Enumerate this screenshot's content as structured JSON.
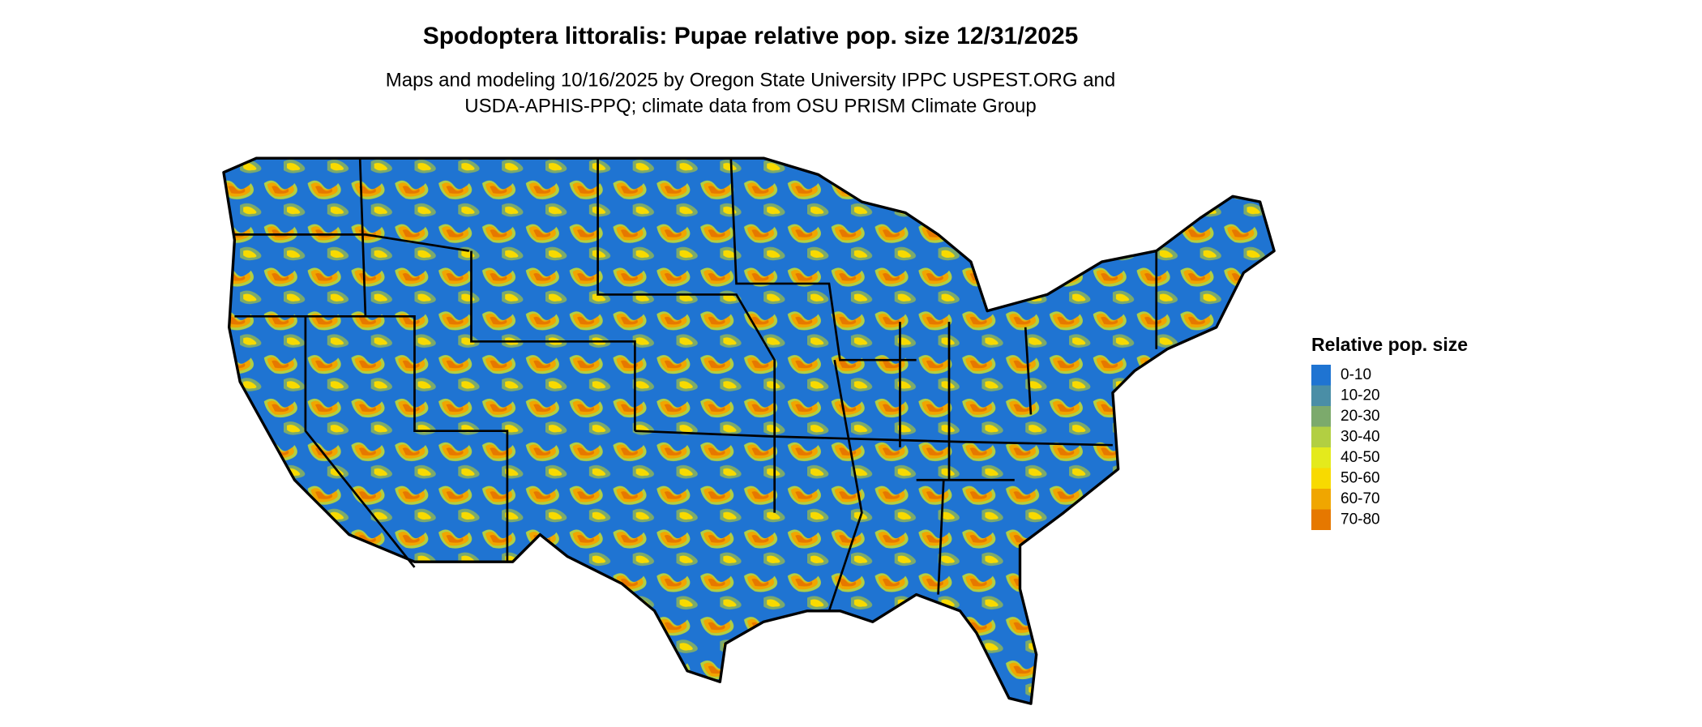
{
  "header": {
    "title": "Spodoptera littoralis: Pupae relative pop. size 12/31/2025",
    "subtitle_lines": [
      "Maps and modeling 10/16/2025 by Oregon State University IPPC USPEST.ORG and",
      "USDA-APHIS-PPQ; climate data from OSU PRISM Climate Group"
    ]
  },
  "legend": {
    "title": "Relative pop. size",
    "items": [
      {
        "label": "0-10",
        "color": "#1f74d2"
      },
      {
        "label": "10-20",
        "color": "#4a8ea6"
      },
      {
        "label": "20-30",
        "color": "#7caa6c"
      },
      {
        "label": "30-40",
        "color": "#b2cf42"
      },
      {
        "label": "40-50",
        "color": "#e4ea1c"
      },
      {
        "label": "50-60",
        "color": "#f8da00"
      },
      {
        "label": "60-70",
        "color": "#f0a600"
      },
      {
        "label": "70-80",
        "color": "#e67800"
      }
    ]
  }
}
